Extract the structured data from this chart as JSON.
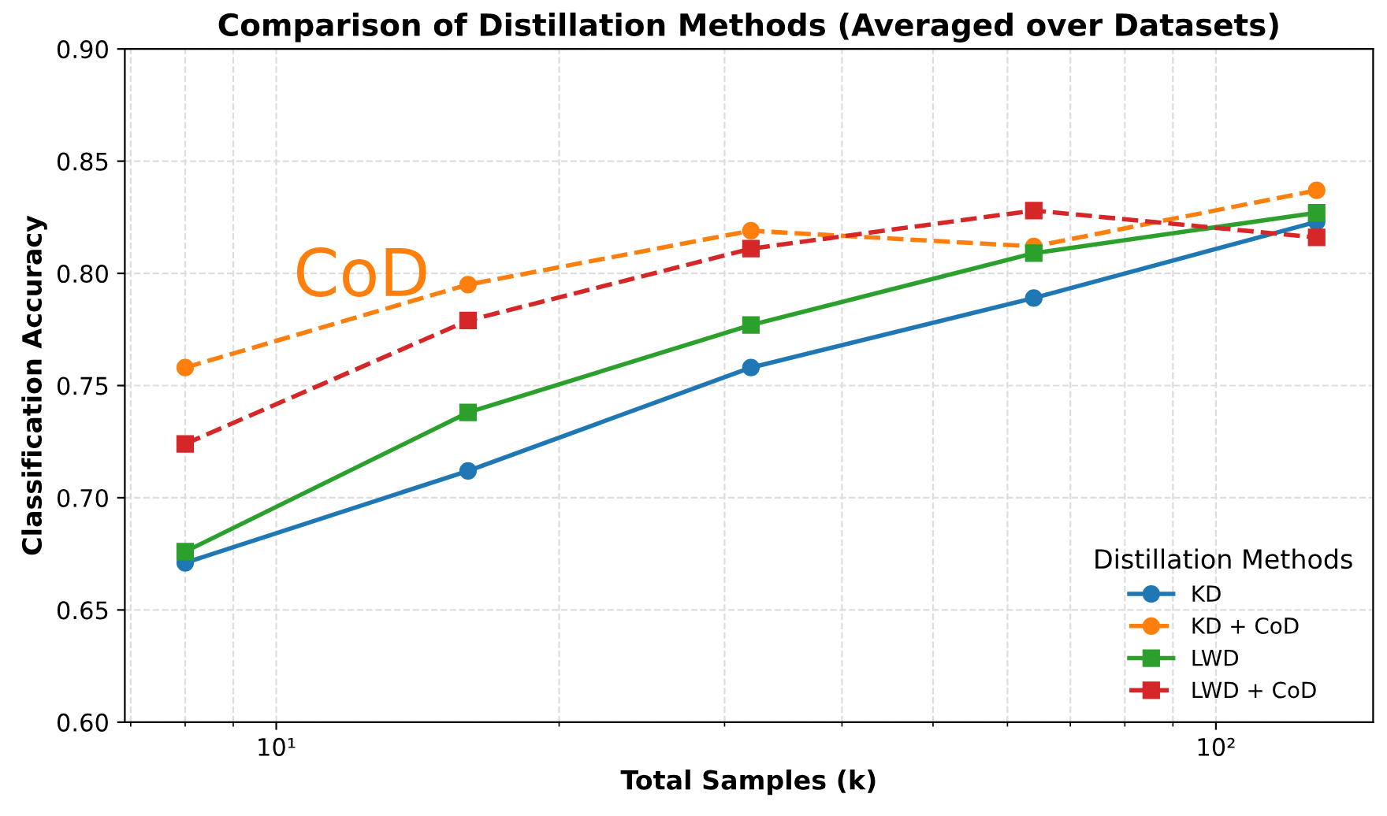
{
  "chart_data": {
    "type": "line",
    "title": "Comparison of Distillation Methods (Averaged over Datasets)",
    "xlabel": "Total Samples (k)",
    "ylabel": "Classification Accuracy",
    "legend_title": "Distillation Methods",
    "x": [
      8,
      16,
      32,
      64,
      128
    ],
    "series": [
      {
        "name": "KD",
        "color": "#1f77b4",
        "marker": "circle",
        "line_style": "solid",
        "values": [
          0.671,
          0.712,
          0.758,
          0.789,
          0.823
        ]
      },
      {
        "name": "KD + CoD",
        "color": "#ff7f0e",
        "marker": "circle",
        "line_style": "dashed",
        "values": [
          0.758,
          0.795,
          0.819,
          0.812,
          0.837
        ]
      },
      {
        "name": "LWD",
        "color": "#2ca02c",
        "marker": "square",
        "line_style": "solid",
        "values": [
          0.676,
          0.738,
          0.777,
          0.809,
          0.827
        ]
      },
      {
        "name": "LWD + CoD",
        "color": "#d62728",
        "marker": "square",
        "line_style": "dashed",
        "values": [
          0.724,
          0.779,
          0.811,
          0.828,
          0.816
        ]
      }
    ],
    "annotations": [
      "CoD"
    ],
    "log": "x",
    "xlim": [
      6.9,
      147
    ],
    "xticks": [
      {
        "value": 10,
        "label": "10¹"
      },
      {
        "value": 100,
        "label": "10²"
      }
    ],
    "ylim": [
      0.6,
      0.9
    ],
    "yticks": [
      {
        "value": 0.6,
        "label": "0.60"
      },
      {
        "value": 0.65,
        "label": "0.65"
      },
      {
        "value": 0.7,
        "label": "0.70"
      },
      {
        "value": 0.75,
        "label": "0.75"
      },
      {
        "value": 0.8,
        "label": "0.80"
      },
      {
        "value": 0.85,
        "label": "0.85"
      },
      {
        "value": 0.9,
        "label": "0.90"
      }
    ],
    "grid": true,
    "legend": "bottom right"
  }
}
